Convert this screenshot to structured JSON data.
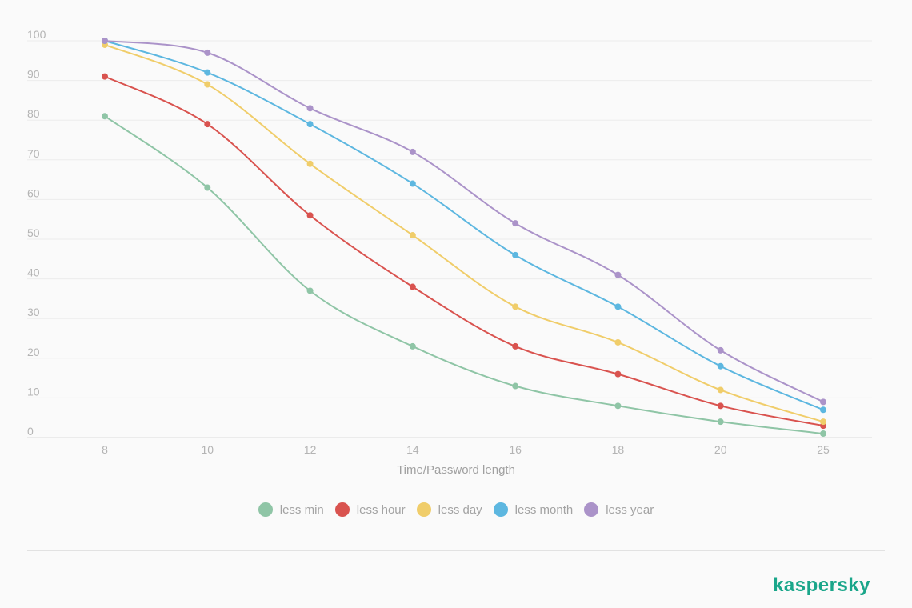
{
  "chart_data": {
    "type": "line",
    "title": "",
    "xlabel": "Time/Password length",
    "ylabel": "",
    "categories": [
      "8",
      "10",
      "12",
      "14",
      "16",
      "18",
      "20",
      "25"
    ],
    "ylim": [
      0,
      100
    ],
    "yticks": [
      0,
      10,
      20,
      30,
      40,
      50,
      60,
      70,
      80,
      90,
      100
    ],
    "grid": true,
    "legend_position": "bottom",
    "series": [
      {
        "name": "less min",
        "color": "#8fc5a6",
        "values": [
          81,
          63,
          37,
          23,
          13,
          8,
          4,
          1
        ]
      },
      {
        "name": "less hour",
        "color": "#d9534f",
        "values": [
          91,
          79,
          56,
          38,
          23,
          16,
          8,
          3
        ]
      },
      {
        "name": "less day",
        "color": "#f0cd6a",
        "values": [
          99,
          89,
          69,
          51,
          33,
          24,
          12,
          4
        ]
      },
      {
        "name": "less month",
        "color": "#5db7e0",
        "values": [
          100,
          92,
          79,
          64,
          46,
          33,
          18,
          7
        ]
      },
      {
        "name": "less year",
        "color": "#ab93c9",
        "values": [
          100,
          97,
          83,
          72,
          54,
          41,
          22,
          9
        ]
      }
    ]
  },
  "brand": {
    "name": "kaspersky",
    "color": "#1aa68a"
  }
}
